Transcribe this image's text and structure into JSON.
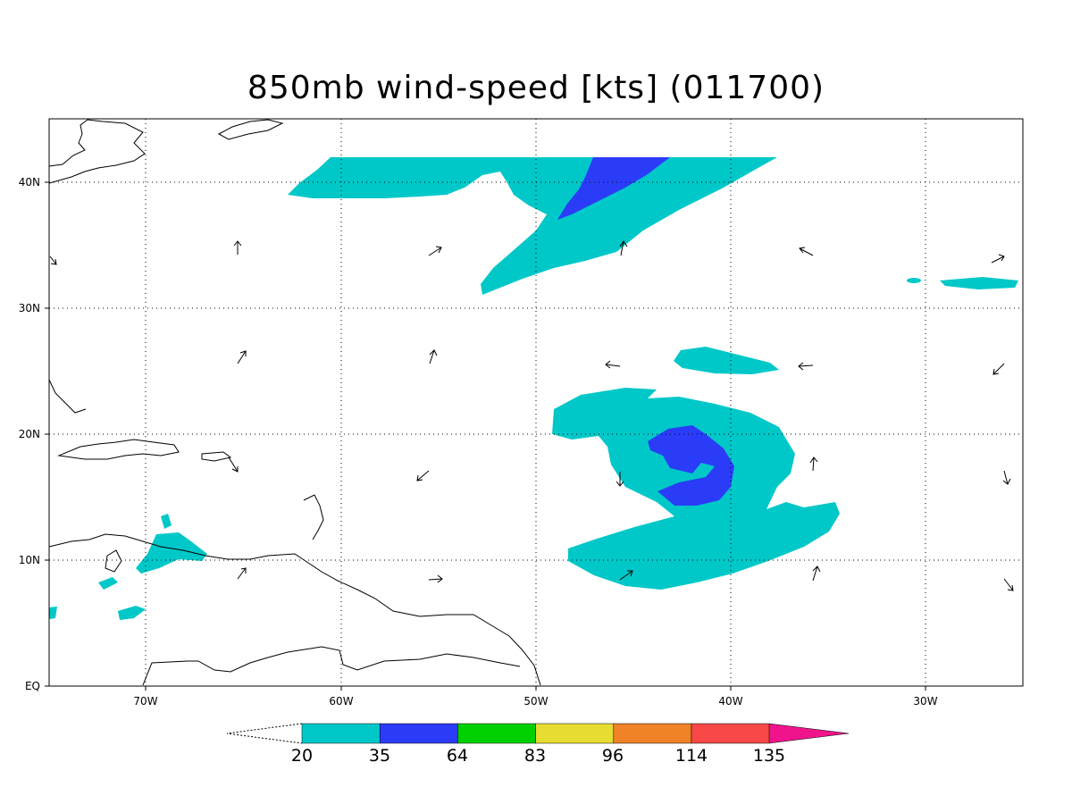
{
  "title": "850mb wind-speed [kts] (011700)",
  "map": {
    "lon_labels": [
      "70W",
      "60W",
      "50W",
      "40W",
      "30W"
    ],
    "lat_labels": [
      "EQ",
      "10N",
      "20N",
      "30N",
      "40N"
    ],
    "lon_values": [
      -70,
      -60,
      -50,
      -40,
      -30
    ],
    "lat_values": [
      0,
      10,
      20,
      30,
      40
    ],
    "lon_range": [
      -75,
      -25
    ],
    "lat_range": [
      0,
      45
    ],
    "gridlines": "dotted"
  },
  "colorbar": {
    "labels": [
      "20",
      "35",
      "64",
      "83",
      "96",
      "114",
      "135"
    ],
    "colors": [
      "#00c8c8",
      "#2b3cf8",
      "#00d000",
      "#e6dc32",
      "#f08228",
      "#f84848",
      "#f0148c"
    ],
    "extend": "both"
  },
  "wind_shading": {
    "levels_kts": [
      20,
      35
    ],
    "colors": {
      "20-35": "#00c8c8",
      "35-64": "#2b3cf8"
    }
  }
}
